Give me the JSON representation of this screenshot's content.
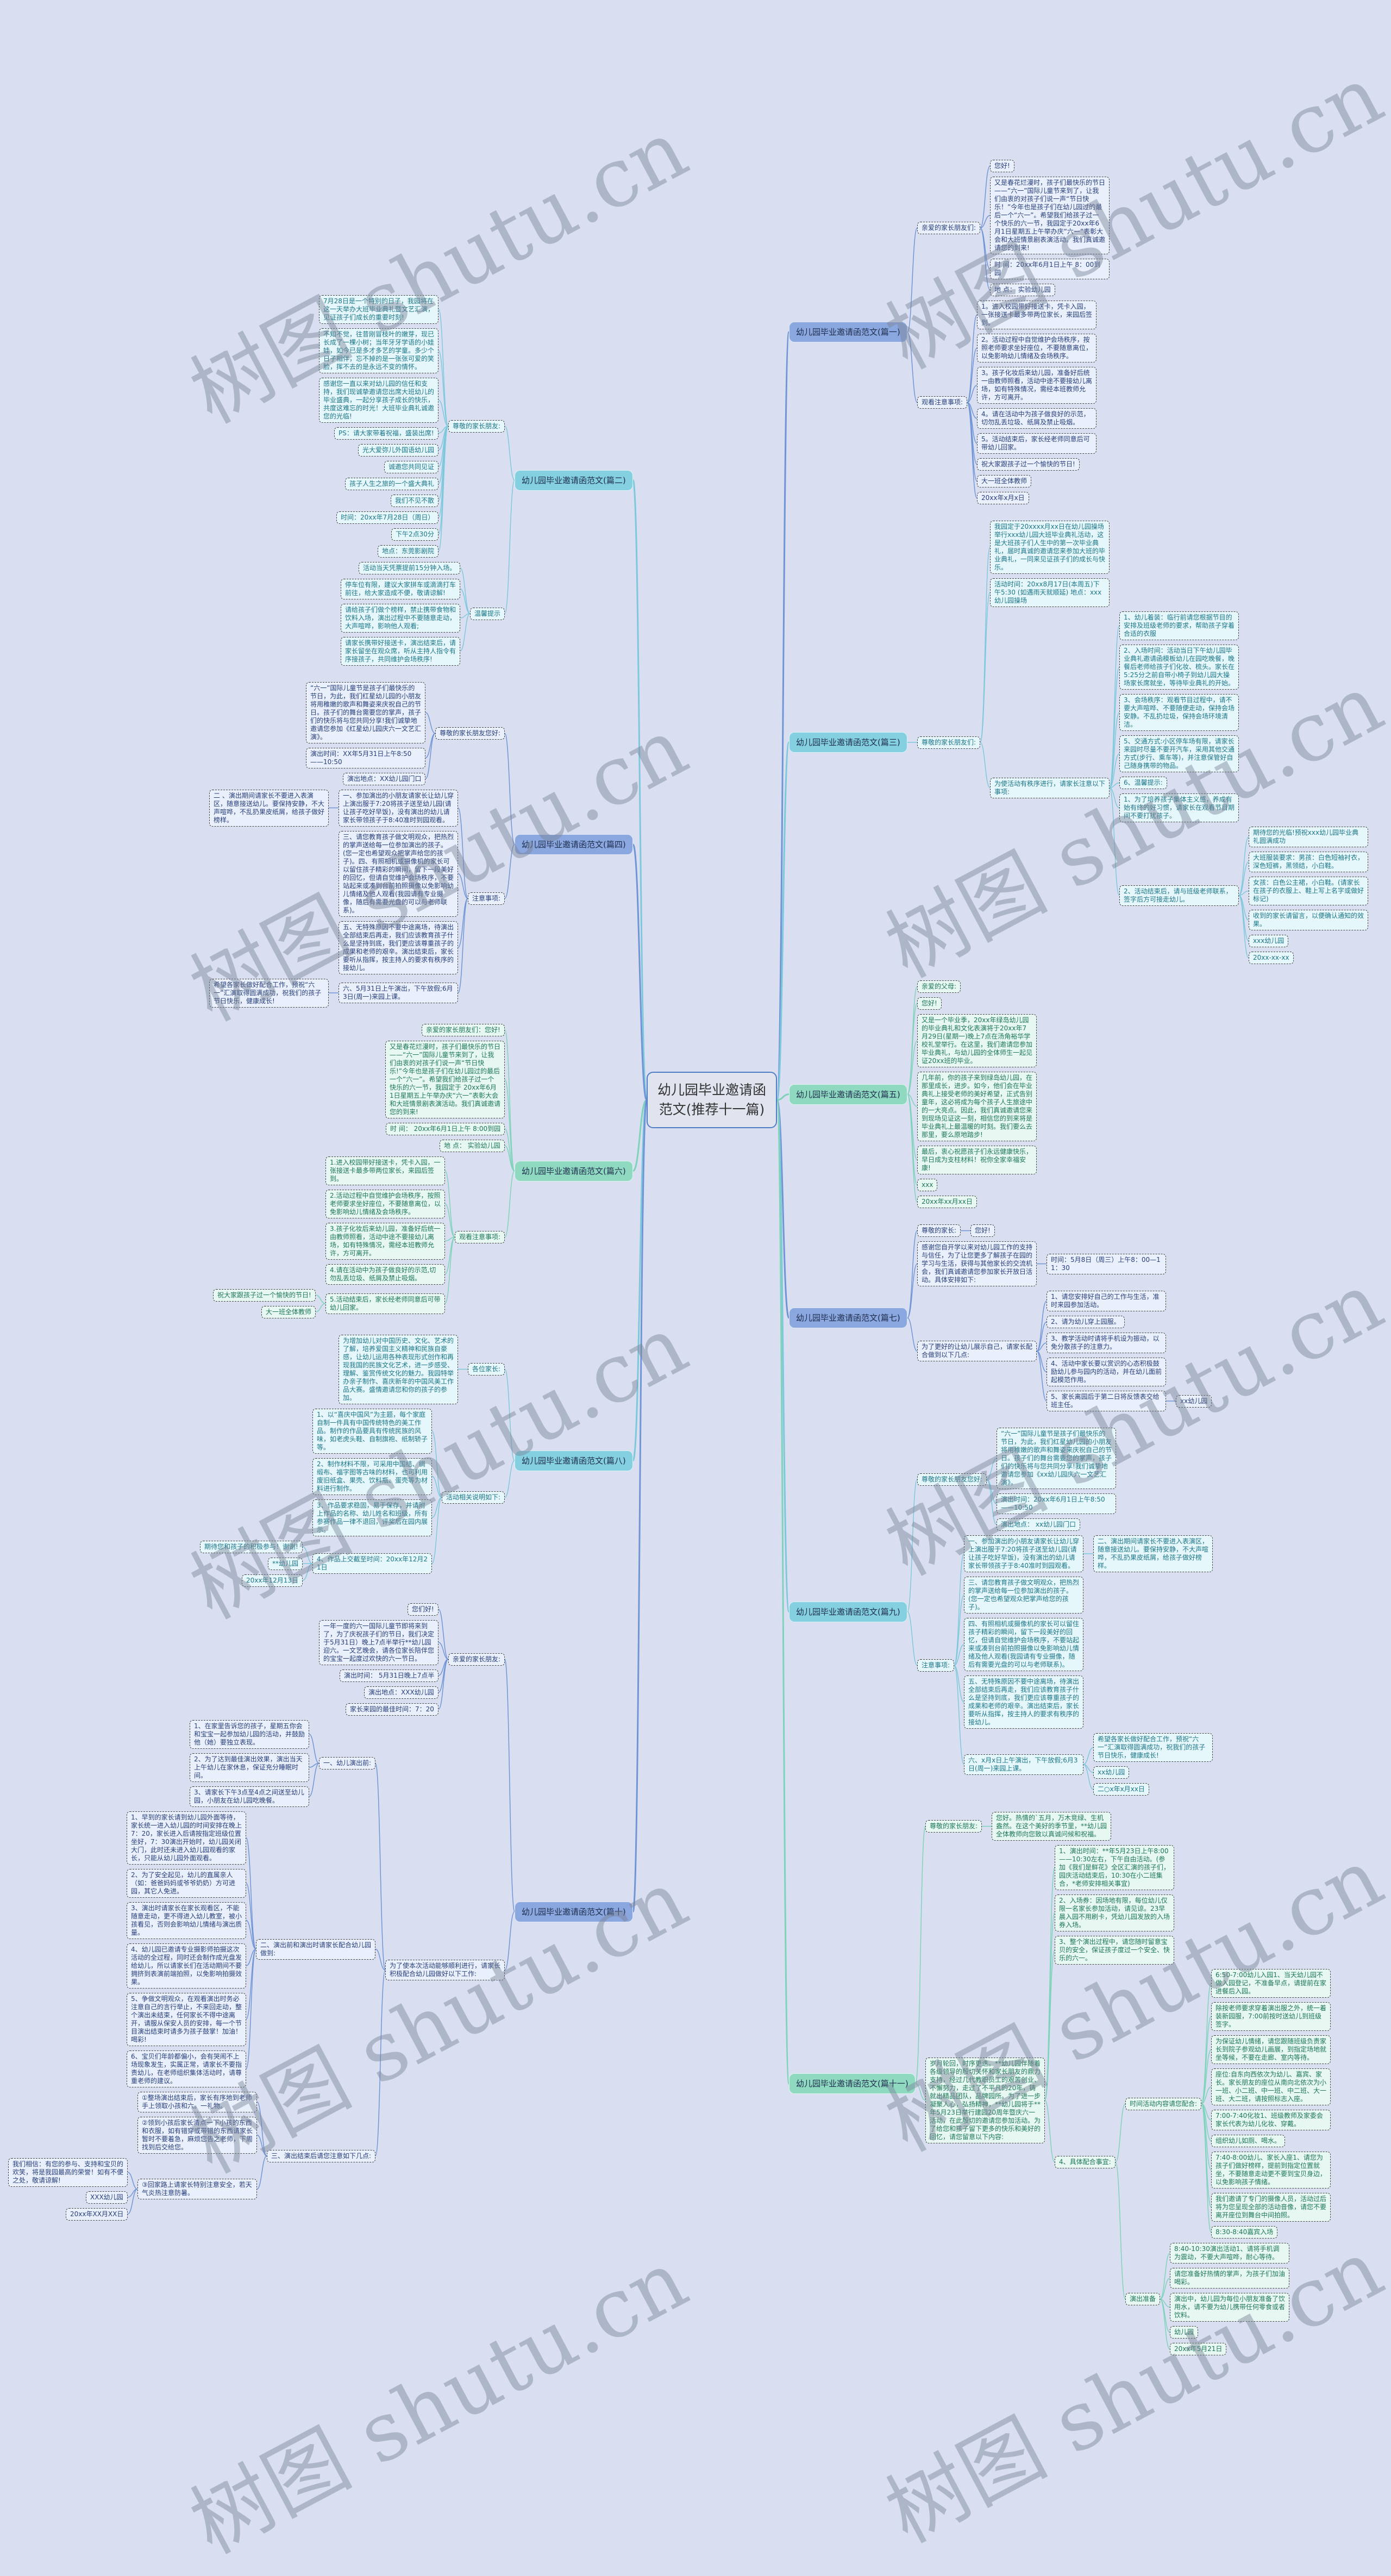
{
  "root": {
    "text": "幼儿园毕业邀请函范文(推荐十一篇)"
  },
  "watermark": "树图 shutu.cn",
  "colors": {
    "background": "#d9dff1",
    "blue": {
      "branch": "#8aa7df",
      "leaf": "#eaf0fb",
      "text": "#253d7a",
      "line": "#7095d6"
    },
    "cyan": {
      "branch": "#84d0e1",
      "leaf": "#e6f7fb",
      "text": "#1b7688",
      "line": "#7ec8dc"
    },
    "green": {
      "branch": "#8fd9c1",
      "leaf": "#e6f8f1",
      "text": "#1d7658",
      "line": "#7fd3bb"
    }
  },
  "right": [
    {
      "text": "幼儿园毕业邀请函范文(篇一)",
      "theme": "blue",
      "children": [
        {
          "text": "亲爱的家长朋友们:",
          "children": [
            {
              "text": "您好!"
            },
            {
              "text": "又是春花烂漫时，孩子们最快乐的节日——“六一”国际儿童节来到了，让我们由衷的对孩子们说一声“节日快乐！”今年也是孩子们在幼儿园过的最后一个“六一”。希望我们给孩子过一个快乐的六一节，我园定于20xx年6月1日星期五上午举办庆“六一”表彰大会和大班情景剧表演活动。我们真诚邀请您的到来!"
            },
            {
              "text": "时 间：20xx年6月1日上午 8：00到园"
            },
            {
              "text": "地 点： 实验幼儿园"
            }
          ]
        },
        {
          "text": "观看注意事项:",
          "children": [
            {
              "text": "1。进入校园带好接送卡，凭卡入园，一张接送卡最多带两位家长，来园后签到。"
            },
            {
              "text": "2。活动过程中自觉维护会场秩序，按照老师要求坐好座位，不要随意离位，以免影响幼儿情绪及会场秩序。"
            },
            {
              "text": "3。孩子化妆后来幼儿园，准备好后统一由教师照看，活动中途不要接幼儿离场，如有特殊情况，需经本班教师允许，方可离开。"
            },
            {
              "text": "4。请在活动中为孩子做良好的示范，切勿乱丢垃圾、纸屑及禁止吸烟。"
            },
            {
              "text": "5。活动结束后，家长经老师同意后可带幼儿回家。"
            },
            {
              "text": "祝大家跟孩子过一个愉快的节日!"
            },
            {
              "text": "大一班全体教师"
            },
            {
              "text": "20xx年x月x日"
            }
          ]
        }
      ]
    },
    {
      "text": "幼儿园毕业邀请函范文(篇三)",
      "theme": "cyan",
      "children": [
        {
          "text": "尊敬的家长朋友们:",
          "children": [
            {
              "text": "我园定于20xxxx月xx日在幼儿园操场举行xxx幼儿园大班毕业典礼活动，这是大班孩子们人生中的第一次毕业典礼，届时真诚的邀请您来参加大班的毕业典礼，一同来见证孩子们的成长与快乐。"
            },
            {
              "text": "活动时间：20xx8月17日(本周五)下午5:30 (如遇雨天就顺延) 地点：xxx幼儿园操场"
            },
            {
              "text": "为使活动有秩序进行，请家长注意以下事项:",
              "children": [
                {
                  "text": "1、幼儿着装：临行前请您根据节目的安排及班级老师的要求，帮助孩子穿着合适的衣服"
                },
                {
                  "text": "2、入场时间：活动当日下午幼儿园毕业典礼邀请函模板幼儿在园吃晚餐，晚餐后老师给孩子们化妆、梳头。家长在5:25分之前自带小椅子到幼儿园大操场家长席就坐，等待毕业典礼的开始。"
                },
                {
                  "text": "3、会场秩序：观看节目过程中，请不要大声喧哗、不要随便走动，保持会场安静。不乱扔垃圾，保持会场环境清洁。"
                },
                {
                  "text": "5、交通方式:小区停车场有限，请家长来园时尽量不要开汽车，采用其他交通方式(步行、乘车等)，并注意保管好自己随身携带的物品。"
                },
                {
                  "text": "6、温馨提示:"
                },
                {
                  "text": "1、为了培养孩子集体主义感，养成有始有终的好习惯，请家长在观看节目期间不要打扰孩子。"
                },
                {
                  "text": "2、活动结束后，请与班级老师联系，签字后方可接走幼儿。",
                  "children": [
                    {
                      "text": "期待您的光临!预祝xxx幼儿园毕业典礼圆满成功"
                    },
                    {
                      "text": "大班服装要求：男孩：白色短袖衬衣，深色短裤，黑领结，小白鞋。"
                    },
                    {
                      "text": "女孩：白色公主裙，小白鞋。(请家长在孩子的衣服上、鞋上写上名字或做好标记)"
                    },
                    {
                      "text": "收到的家长请留言，以便确认通知的效果。"
                    },
                    {
                      "text": "xxx幼儿园"
                    },
                    {
                      "text": "20xx-xx-xx"
                    }
                  ]
                }
              ]
            }
          ]
        }
      ]
    },
    {
      "text": "幼儿园毕业邀请函范文(篇五)",
      "theme": "green",
      "children": [
        {
          "text": "亲爱的父母:"
        },
        {
          "text": "您好!"
        },
        {
          "text": "又是一个毕业季，20xx年绿岛幼儿园的毕业典礼和文化表演将于20xx年7月29日(星期一)晚上7点在汤角裕华学校礼堂举行。在这里，我们邀请您参加毕业典礼，与幼儿园的全体师生一起见证20xx班的毕业。"
        },
        {
          "text": "几年前，你的孩子来到绿岛幼儿园，在那里成长，进步。如今，他们会在毕业典礼上接受老师的美好希望，正式告别童年，这必将成为每个孩子人生旅途中的一大亮点。因此，我们真诚邀请您来到现场见证这一刻，相信您的到来将是毕业典礼上最温暖的时刻。我们要么去那里，要么原地踏步!"
        },
        {
          "text": "最后，衷心祝愿孩子们永远健康快乐，早日成为支柱材料！祝你全家幸福安康!"
        },
        {
          "text": "xxx"
        },
        {
          "text": "20xx年xx月xx日"
        }
      ]
    },
    {
      "text": "幼儿园毕业邀请函范文(篇七)",
      "theme": "blue",
      "children": [
        {
          "text": "尊敬的家长:",
          "children": [
            {
              "text": "您好!"
            }
          ]
        },
        {
          "text": "感谢您自开学以来对幼儿园工作的支持与信任，为了让您更多了解孩子在园的学习与生活，获得与其他家长的交流机会，我们真诚邀请您参加家长开放日活动。具体安排如下:",
          "children": [
            {
              "text": "时间：5月8日（周三）上午8：00—11：30"
            }
          ]
        },
        {
          "text": "为了更好的让幼儿展示自己，请家长配合做到以下几点:",
          "children": [
            {
              "text": "1、请您安排好自己的工作与生活，准时来园参加活动。"
            },
            {
              "text": "2、请为幼儿穿上园服。"
            },
            {
              "text": "3、教学活动时请将手机设为振动，以免分散孩子的注意力。"
            },
            {
              "text": "4、活动中家长要以赏识的心态积极鼓励幼儿参与园内的活动，并在幼儿面前起模范作用。"
            },
            {
              "text": "5、家长离园后于第二日将反馈表交给班主任。",
              "children": [
                {
                  "text": "xx幼儿园"
                }
              ]
            }
          ]
        }
      ]
    },
    {
      "text": "幼儿园毕业邀请函范文(篇九)",
      "theme": "cyan",
      "children": [
        {
          "text": "尊敬的家长朋友您好:",
          "children": [
            {
              "text": "“六一”国际儿童节是孩子们最快乐的节日，为此，我们红星幼儿园的小朋友将用稚嫩的歌声和舞姿来庆祝自己的节日。孩子们的舞台需要您的掌声，孩子们的快乐将与您共同分享!我们诚挚地邀请您参加《xx幼儿园庆六一文艺汇演》。"
            },
            {
              "text": "演出时间：20xx年6月1日上午8:50——10:50"
            },
            {
              "text": "演出地点： xx幼儿园门口"
            }
          ]
        },
        {
          "text": "注意事项:",
          "children": [
            {
              "text": "一、参加演出的小朋友请家长让幼儿穿上演出服于7:20将孩子送至幼儿园(请让孩子吃好早饭)，没有演出的幼儿请家长带领孩子于8:40准时到园观看。",
              "children": [
                {
                  "text": "二、演出期间请家长不要进入表演区，随意接送幼儿。要保持安静，不大声喧哗，不乱扔果皮纸屑，给孩子做好榜样。"
                }
              ]
            },
            {
              "text": "三、请您教育孩子做文明观众，把热烈的掌声送给每一位参加演出的孩子。(您一定也希望观众把掌声给您的孩子)。"
            },
            {
              "text": "四、有照相机或摄像机的家长可以留住孩子精彩的瞬间，留下一段美好的回忆，但请自觉维护会场秩序，不要站起来或凑到台前拍照摄像以免影响幼儿情绪及他人观看(我园请有专业摄像，随后有需要光盘的可以与老师联系)。"
            },
            {
              "text": "五、无特殊原因不要中途离场，待演出全部结束后再走，我们应该教育孩子什么是坚持到底，我们更应该尊重孩子的成果和老师的艰辛。演出结束后，家长要听从指挥，按主持人的要求有秩序的接幼儿。"
            },
            {
              "text": "六、x月x日上午演出，下午放假;6月3日(周一)来园上课。",
              "children": [
                {
                  "text": "希望各家长做好配合工作，预祝“六一”汇演取得圆满成功，祝我们的孩子节日快乐，健康成长!"
                },
                {
                  "text": "xx幼儿园"
                },
                {
                  "text": "二○x年x月xx日"
                }
              ]
            }
          ]
        }
      ]
    },
    {
      "text": "幼儿园毕业邀请函范文(篇十一)",
      "theme": "green",
      "children": [
        {
          "text": "尊敬的家长朋友:",
          "children": [
            {
              "text": "您好。热情的`五月，万木竞绿、生机盎然。在这个美好的季节里，**幼儿园全体教师向您致以真诚问候和祝福。"
            }
          ]
        },
        {
          "text": "岁月轮回，时序更迭。**幼儿园伴随着各级领导的殷切关怀和家长朋友的鼎力支持，经过几代教职员工的艰苦创业、不懈努力，走过了不平凡的20年，铸就出精品团队，品牌园所。为了进一步凝聚人心，弘扬精神，**幼儿园将于**年5月23日举行建园20周年暨庆六一活动，在此殷切的邀请您参加活动。为了给您和孩子留下更多的快乐和美好的回忆，请您留意以下内容:",
          "children": [
            {
              "text": "1、演出时间：**年5月23日上午8:00——10:30左右，下午自由活动。(参加《我们是鲜花》全区汇演的孩子们，园庆活动结束后，10:30在小二班集合，*老师安排相关事宜)"
            },
            {
              "text": "2、入场券：因场地有限，每位幼儿仅限一名家长参加活动，请见谅。23早晨入园不用刷卡，凭幼儿园发放的入场券入场。"
            },
            {
              "text": "3、整个演出过程中，请您随时留意宝贝的安全，保证孩子度过一个安全、快乐的六一。"
            },
            {
              "text": "4、具体配合事宜:",
              "children": [
                {
                  "text": "时间活动内容请您配合:",
                  "children": [
                    {
                      "text": "6:50-7:00幼儿入园1、当天幼儿园不做入园登记，不准备早点，请提前在家进餐后入园。"
                    },
                    {
                      "text": "除按老师要求穿着演出服之外，统一着装新园服，7:00前按时送幼儿到班级签字。"
                    },
                    {
                      "text": "为保证幼儿情绪，请您跟随班级负责家长到院子参观幼儿画展，到指定场地就坐等候，不要在走廊、室内等待。"
                    },
                    {
                      "text": "座位:自东向西依次为幼儿、嘉宾、家长。家长朋友的座位从南向北依次为小一班、小二班、中一班、中二班、大一班、大二班，请按照标志入座。"
                    },
                    {
                      "text": "7:00-7:40化妆1、班级教师及家委会家长代表为幼儿化妆、穿戴。"
                    },
                    {
                      "text": "组织幼儿如厕、喝水。"
                    },
                    {
                      "text": "7:40-8:00幼儿、家长入座1、请您为孩子们做好榜样，提前到指定位置就坐，不要随意走动更不要到宝贝身边，以免影响孩子情绪。"
                    },
                    {
                      "text": "我们邀请了专门的摄像人员，活动过后将为您呈现全部的活动音像，请您不要离开座位到舞台中间拍照。"
                    },
                    {
                      "text": "8:30-8:40嘉宾入场"
                    }
                  ]
                },
                {
                  "text": "演出准备",
                  "children": [
                    {
                      "text": "8:40-10:30演出活动1、请将手机调为震动，不要大声喧哗，耐心等待。"
                    },
                    {
                      "text": "请您准备好热情的掌声，为孩子们加油喝彩。"
                    },
                    {
                      "text": "演出中，幼儿园为每位小朋友准备了饮用水，请不要为幼儿携带任何零食或者饮料。"
                    },
                    {
                      "text": "幼儿园"
                    },
                    {
                      "text": "20xx年5月21日"
                    }
                  ]
                }
              ]
            }
          ]
        }
      ]
    }
  ],
  "left": [
    {
      "text": "幼儿园毕业邀请函范文(篇二)",
      "theme": "cyan",
      "children": [
        {
          "text": "尊敬的家长朋友:",
          "children": [
            {
              "text": "7月28日是一个特别的日子，我园将在这一天举办大班毕业典礼暨文艺汇演，见证孩子们成长的重要时刻!"
            },
            {
              "text": "不知不觉，往昔刚冒枝叶的嫩芽，现已长成了一棵小树；当年牙牙学语的小娃娃，如今已是多才多艺的学童。多少个日子相伴，忘不掉的是一张张可爱的笑脸，挥不去的是永远不变的情怀。"
            },
            {
              "text": "感谢您一直以来对幼儿园的信任和支持，我们现诚挚邀请您出席大班幼儿的毕业盛典，一起分享孩子成长的快乐，共度这难忘的时光！大班毕业典礼诚邀您的光临!"
            },
            {
              "text": "PS：请大家带着祝福，盛装出席!"
            },
            {
              "text": "光大爱弥儿外国语幼儿园"
            },
            {
              "text": "诚邀您共同见证"
            },
            {
              "text": "孩子人生之旅的一个盛大典礼"
            },
            {
              "text": "我们不见不散"
            },
            {
              "text": "时间：20xx年7月28日（周日）"
            },
            {
              "text": "下午2点30分"
            },
            {
              "text": "地点：东莞影剧院"
            }
          ]
        },
        {
          "text": "温馨提示",
          "children": [
            {
              "text": "活动当天凭票提前15分钟入场。"
            },
            {
              "text": "停车位有限，建议大家拼车或滴滴打车前往，给大家造成不便，敬请谅解!"
            },
            {
              "text": "请给孩子们做个榜样，禁止携带食物和饮料入场，演出过程中不要随意走动，大声喧哗，影响他人观看;"
            },
            {
              "text": "请家长携带好接送卡，演出结束后，请家长留坐在观众席，听从主持人指令有序接孩子，共同维护会场秩序!"
            }
          ]
        }
      ]
    },
    {
      "text": "幼儿园毕业邀请函范文(篇四)",
      "theme": "blue",
      "children": [
        {
          "text": "尊敬的家长朋友您好:",
          "children": [
            {
              "text": "“六一”国际儿童节是孩子们最快乐的节日，为此，我们红星幼儿园的小朋友将用稚嫩的歌声和舞姿来庆祝自己的节日。孩子们的舞台需要您的掌声，孩子们的快乐将与您共同分享!我们诚挚地邀请您参加《红星幼儿园庆六一文艺汇演》。"
            },
            {
              "text": "演出时间：XX年5月31日上午8:50——10:50"
            },
            {
              "text": "演出地点：XX幼儿园门口"
            }
          ]
        },
        {
          "text": "注意事项:",
          "children": [
            {
              "text": "一、参加演出的小朋友请家长让幼儿穿上演出服于7:20将孩子送至幼儿园(请让孩子吃好早饭)，没有演出的幼儿请家长带领孩子于8:40准时到园观看。",
              "children": [
                {
                  "text": "二 、演出期间请家长不要进入表演区，随意接送幼儿。要保持安静，不大声喧哗，不乱扔果皮纸屑，给孩子做好榜样。"
                }
              ]
            },
            {
              "text": "三、请您教育孩子做文明观众，把热烈的掌声送给每一位参加演出的孩子。(您一定也希望观众把掌声给您的孩子)。四、有照相机或摄像机的家长可以留住孩子精彩的瞬间，留下一段美好的回忆，但请自觉维护会场秩序，不要站起来或凑到台前拍照摄像以免影响幼儿情绪及他人观看(我园请有专业摄像，随后有需要光盘的可以与老师联系)。"
            },
            {
              "text": "五、无特殊原因不要中途离场，待演出全部结束后再走，我们应该教育孩子什么是坚持到底，我们更应该尊重孩子的成果和老师的艰辛。演出结束后，家长要听从指挥，按主持人的要求有秩序的接幼儿。"
            },
            {
              "text": "六、5月31日上午演出，下午放假;6月3日(周一)来园上课。",
              "children": [
                {
                  "text": "希望各家长做好配合工作，预祝“六一”汇演取得圆满成功，祝我们的孩子节日快乐，健康成长!"
                }
              ]
            }
          ]
        }
      ]
    },
    {
      "text": "幼儿园毕业邀请函范文(篇六)",
      "theme": "green",
      "children": [
        {
          "text": "亲爱的家长朋友们：您好!"
        },
        {
          "text": "又是春花烂漫时，孩子们最快乐的节日——“六一”国际儿童节来到了，让我们由衷的对孩子们说一声“节日快乐!”今年也是孩子们在幼儿园过的最后一个“六一”。希望我们给孩子过一个快乐的六一节，我园定于 20xx年6月1日星期五上午举办庆“六一”表彰大会和大班情景剧表演活动。我们真诚邀请您的到来!"
        },
        {
          "text": "时 间： 20xx年6月1日上午 8:00到园"
        },
        {
          "text": "地 点： 实验幼儿园"
        },
        {
          "text": "观看注意事项:",
          "children": [
            {
              "text": "1.进入校园带好接送卡，凭卡入园，一张接送卡最多带两位家长，来园后签到。"
            },
            {
              "text": "2.活动过程中自觉维护会场秩序，按照老师要求坐好座位，不要随意离位，以免影响幼儿情绪及会场秩序。"
            },
            {
              "text": "3.孩子化妆后来幼儿园，准备好后统一由教师照看，活动中途不要接幼儿离场，如有特殊情况，需经本班教师允许，方可离开。"
            },
            {
              "text": "4.请在活动中为孩子做良好的示范,切勿乱丢垃圾、纸屑及禁止吸烟。"
            },
            {
              "text": "5.活动结束后，家长经老师同意后可带幼儿回家。",
              "children": [
                {
                  "text": "祝大家跟孩子过一个愉快的节日!"
                },
                {
                  "text": "大一班全体教师"
                }
              ]
            }
          ]
        }
      ]
    },
    {
      "text": "幼儿园毕业邀请函范文(篇八)",
      "theme": "cyan",
      "children": [
        {
          "text": "各位家长:",
          "children": [
            {
              "text": "为增加幼儿对中国历史、文化、艺术的了解，培养爱国主义精神和民族自豪感，让幼儿运用各种表现形式创作和再现我国的民族文化艺术，进一步感受、理解、鉴赏传统文化的魅力。我园特举办亲子制作、喜庆新年的中国风美工作品大赛。盛情邀请您和你的孩子的参加。"
            }
          ]
        },
        {
          "text": "活动相关说明如下:",
          "children": [
            {
              "text": "1、以“喜庆中国风”为主题，每个家庭自制一件具有中国传统特色的美工作品。制作的作品要具有传统民族的风味，如老虎头鞋、自制旗袍、纸制轿子等。"
            },
            {
              "text": "2、制作材料不限，可采用中国结、绸缎布、福字图等古味的材料，也可利用废旧纸盒、果壳、饮料瓶、蛋壳等为材料进行制作。"
            },
            {
              "text": "3、作品要求稳固，易于保存，并请附上作品的名称、幼儿姓名和班级，所有参赛作品一律不退回，评奖后在园内展示。"
            },
            {
              "text": "4、作品上交截至时间：20xx年12月21日",
              "children": [
                {
                  "text": "期待您和孩子的积极参与！谢谢!"
                },
                {
                  "text": "**幼儿园"
                },
                {
                  "text": "20xx年12月13日"
                }
              ]
            }
          ]
        }
      ]
    },
    {
      "text": "幼儿园毕业邀请函范文(篇十)",
      "theme": "blue",
      "children": [
        {
          "text": "亲爱的家长朋友:",
          "children": [
            {
              "text": "您们好!"
            },
            {
              "text": "一年一度的六一国际儿童节即将来到了，为了庆祝孩子们的节日，我们决定于5月31日）晚上7点半举行**幼儿园迎六。一文艺晚会，请各位家长陪伴您的宝宝一起度过欢快的六一节日。"
            },
            {
              "text": "演出时间： 5月31日晚上7点半"
            },
            {
              "text": "演出地点：XXX幼儿园"
            },
            {
              "text": "家长来园的最佳时间：7：20"
            }
          ]
        },
        {
          "text": "为了使本次活动能够顺利进行，请家长积极配合幼儿园做好以下工作:",
          "children": [
            {
              "text": "一、幼儿演出前:",
              "children": [
                {
                  "text": "1、在家里告诉您的孩子，星期五你会和宝宝一起参加幼儿园的活动，并鼓励他（她）要独立表现。"
                },
                {
                  "text": "2、为了达到最佳演出效果，演出当天上午幼儿在家休息，保证充分睡眠时间。"
                },
                {
                  "text": "3、请家长下午3点至4点之间送至幼儿园，小朋友在幼儿园吃晚餐。"
                }
              ]
            },
            {
              "text": "二、演出前和演出时请家长配合幼儿园做到:",
              "children": [
                {
                  "text": "1、早到的家长请到幼儿园外面等待，家长统一进入幼儿园的时间安排在晚上7：20，家长进入后请按指定班级位置坐好，7：30演出开始时，幼儿园关闭大门，此时还未进入幼儿园观看的家长，只能从幼儿园外面观看。"
                },
                {
                  "text": "2、为了安全起见，幼儿的直属亲人（如：爸爸妈妈或爷爷奶奶）方可进园，其它人免进。"
                },
                {
                  "text": "3、演出时请家长在家长观看区，不能随意走动，更不得进入幼儿教室，被小孩看见，否则会影响幼儿情绪与演出质量。"
                },
                {
                  "text": "4、幼儿园已邀请专业摄影师拍摄这次活动的全过程，同时还会制作成光盘发给幼儿，所以请家长们在活动期间不要拥挤到表演前端拍照，以免影响拍摄效果。"
                },
                {
                  "text": "5、争做文明观众，在观看演出时务必注意自己的言行举止，不来回走动，整个演出未结束，任何家长不得中途离开，请服从保安人员的安排，每一个节目演出结束时请多为孩子鼓掌！加油！喝彩!"
                },
                {
                  "text": "6、宝贝们年龄都偏小，会有哭闹不上场现象发生，实属正常，请家长不要指责幼儿，在老师组织集体活动时，请尊重老师的建议。"
                }
              ]
            },
            {
              "text": "三、演出结束后请您注意如下几点:",
              "children": [
                {
                  "text": "①整场演出结束后，家长有序地到老师手上领取小孩和六。一礼物。"
                },
                {
                  "text": "②领到小孩后家长清点一下小孩的东西和衣服，如有错穿或带错的东西请家长暂时不要着急，麻烦您告之老师，下周找到后交给您。"
                },
                {
                  "text": "③回家路上请家长特别注意安全，若天气炎热注意防暑。",
                  "children": [
                    {
                      "text": "我们相信：有您的参与、支持和宝贝的欢笑，将是我园最高的荣誉！如有不便之处，敬请谅解!"
                    },
                    {
                      "text": "XXX幼儿园"
                    },
                    {
                      "text": "20xx年XX月XX日"
                    }
                  ]
                }
              ]
            }
          ]
        }
      ]
    }
  ]
}
